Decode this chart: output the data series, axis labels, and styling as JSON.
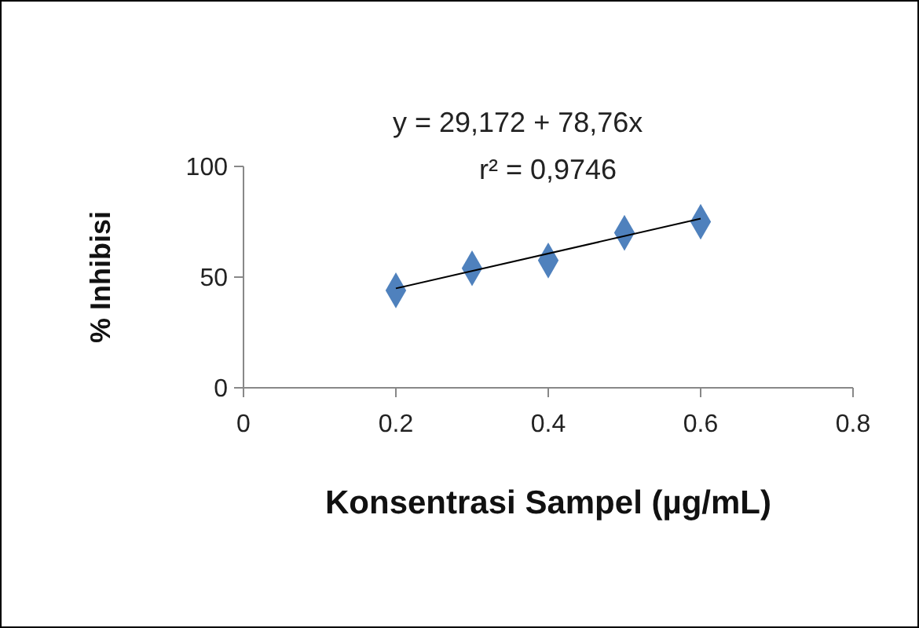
{
  "chart_data": {
    "type": "scatter",
    "xlabel": "Konsentrasi Sampel (µg/mL)",
    "ylabel": "% Inhibisi",
    "series": [
      {
        "color": "#4f81bd",
        "x": [
          0.2,
          0.3,
          0.4,
          0.5,
          0.6
        ],
        "values": [
          44,
          54,
          57.5,
          70,
          75
        ],
        "marker": "diamond"
      },
      {
        "type": "line",
        "color": "#000000",
        "x": [
          0.2,
          0.6
        ],
        "values": [
          44.9,
          76.4
        ]
      }
    ],
    "xlim": [
      0,
      0.8
    ],
    "xticks": [
      0,
      0.2,
      0.4,
      0.6,
      0.8
    ],
    "ylim": [
      0,
      100
    ],
    "yticks": [
      0,
      50,
      100
    ],
    "grid": false,
    "annotations": [
      "y =  29,172  + 78,76x",
      "r² = 0,9746"
    ]
  }
}
